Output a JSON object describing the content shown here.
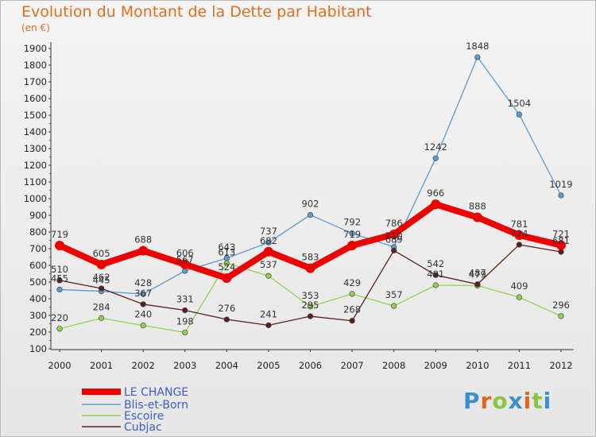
{
  "header": {
    "title": "Evolution du Montant de la Dette par Habitant",
    "unit": "(en €)"
  },
  "logo": {
    "text": "Proxiti",
    "letter_colors": [
      "#3a8fd0",
      "#e2661c",
      "#8cc63f",
      "#3a8fd0",
      "#e2661c",
      "#8cc63f",
      "#3a8fd0"
    ]
  },
  "chart_data": {
    "type": "line",
    "title": "Evolution du Montant de la Dette par Habitant",
    "ylabel": "(en €)",
    "xlabel": "",
    "x": [
      "2000",
      "2001",
      "2002",
      "2003",
      "2004",
      "2005",
      "2006",
      "2007",
      "2008",
      "2009",
      "2010",
      "2011",
      "2012"
    ],
    "yticks": [
      100,
      200,
      300,
      400,
      500,
      600,
      700,
      800,
      900,
      1000,
      1100,
      1200,
      1300,
      1400,
      1500,
      1600,
      1700,
      1800,
      1900
    ],
    "ylim": [
      100,
      1900
    ],
    "grid": false,
    "legend_position": "bottom-left",
    "series": [
      {
        "name": "Blis-et-Born",
        "color": "#5b9bd5",
        "values": [
          455,
          445,
          428,
          567,
          643,
          737,
          902,
          792,
          710,
          1242,
          1848,
          1504,
          1019
        ]
      },
      {
        "name": "Escoire",
        "color": "#8fd14f",
        "values": [
          220,
          284,
          240,
          198,
          613,
          537,
          353,
          429,
          357,
          481,
          479,
          409,
          296
        ]
      },
      {
        "name": "Cubjac",
        "color": "#5a1f1f",
        "values": [
          510,
          462,
          367,
          331,
          276,
          241,
          295,
          268,
          689,
          542,
          487,
          724,
          681
        ]
      },
      {
        "name": "LE CHANGE",
        "color": "#ee0000",
        "values": [
          719,
          605,
          688,
          606,
          524,
          682,
          583,
          719,
          786,
          966,
          888,
          781,
          721
        ]
      }
    ],
    "legend_order": [
      "LE CHANGE",
      "Blis-et-Born",
      "Escoire",
      "Cubjac"
    ]
  }
}
